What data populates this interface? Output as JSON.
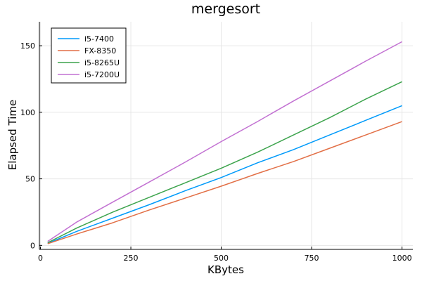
{
  "chart_data": {
    "type": "line",
    "title": "mergesort",
    "xlabel": "KBytes",
    "ylabel": "Elapsed Time",
    "xlim": [
      -3,
      1030
    ],
    "ylim": [
      -3,
      168
    ],
    "xticks": [
      0,
      250,
      500,
      750,
      1000
    ],
    "yticks": [
      0,
      50,
      100,
      150
    ],
    "grid": true,
    "legend_position": "top-left",
    "series": [
      {
        "name": "i5-7400",
        "color": "#009AFA",
        "x": [
          20,
          100,
          200,
          300,
          400,
          500,
          600,
          700,
          800,
          900,
          1000
        ],
        "y": [
          1.5,
          10.5,
          20.5,
          30.5,
          41,
          51,
          62,
          72,
          83,
          94,
          105
        ]
      },
      {
        "name": "FX-8350",
        "color": "#E26F46",
        "x": [
          20,
          100,
          200,
          300,
          400,
          500,
          600,
          700,
          800,
          900,
          1000
        ],
        "y": [
          1.3,
          8.5,
          17,
          26.5,
          35.5,
          44.5,
          54,
          63,
          73,
          83,
          93
        ]
      },
      {
        "name": "i5-8265U",
        "color": "#3DA44D",
        "x": [
          20,
          100,
          200,
          300,
          400,
          500,
          600,
          700,
          800,
          900,
          1000
        ],
        "y": [
          2,
          13,
          25,
          36,
          47,
          58,
          70,
          83,
          96,
          110,
          123
        ]
      },
      {
        "name": "i5-7200U",
        "color": "#C271D2",
        "x": [
          20,
          100,
          200,
          300,
          400,
          500,
          600,
          700,
          800,
          900,
          1000
        ],
        "y": [
          3,
          17.5,
          32.5,
          47.5,
          62.5,
          78,
          93,
          108.5,
          123.5,
          138.5,
          153
        ]
      }
    ]
  }
}
